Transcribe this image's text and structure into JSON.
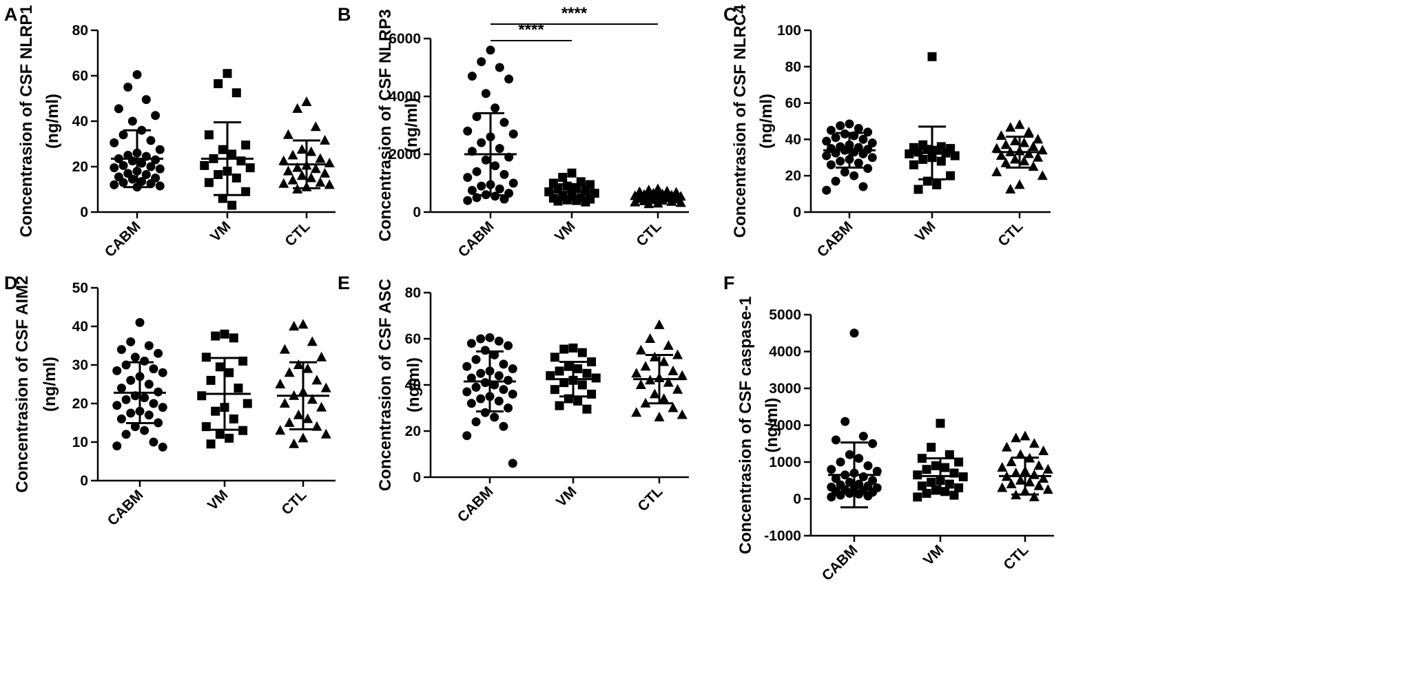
{
  "chart_data": [
    {
      "type": "scatter",
      "panel": "A",
      "ylabel": [
        "Concentrasion of CSF NLRP1",
        "(ng/ml)"
      ],
      "categories": [
        "CABM",
        "VM",
        "CTL"
      ],
      "ylim": [
        0,
        80
      ],
      "yticks": [
        0,
        20,
        40,
        60,
        80
      ],
      "series": [
        {
          "name": "CABM",
          "marker": "circle",
          "mean": 23.5,
          "sd": 12.5,
          "values": [
            60.5,
            55,
            49.5,
            45.5,
            42.5,
            40,
            36,
            34,
            31.5,
            30.5,
            27.5,
            26,
            25,
            24.5,
            23.5,
            23,
            22.5,
            21.5,
            20.5,
            20,
            19.5,
            19,
            18,
            17,
            16.5,
            15.5,
            15,
            14.5,
            13.5,
            13,
            12.5,
            12,
            11.5,
            11
          ]
        },
        {
          "name": "VM",
          "marker": "square",
          "mean": 23.5,
          "sd": 16,
          "values": [
            61,
            56.5,
            52.5,
            34,
            29.5,
            27.5,
            25.5,
            23.5,
            22.5,
            20.5,
            19.5,
            18,
            16.5,
            15,
            13,
            9,
            6,
            3
          ]
        },
        {
          "name": "CTL",
          "marker": "triangle",
          "mean": 21,
          "sd": 10.5,
          "values": [
            48.5,
            45.5,
            37.5,
            34,
            31.5,
            27.5,
            26.5,
            25,
            23.5,
            22.5,
            21.5,
            20.5,
            19.5,
            19,
            18,
            17,
            16,
            15,
            14,
            13,
            12.5,
            12,
            11,
            10
          ]
        }
      ]
    },
    {
      "type": "scatter",
      "panel": "B",
      "ylabel": [
        "Concentrasion of CSF NLRP3",
        "(ng/ml)"
      ],
      "categories": [
        "CABM",
        "VM",
        "CTL"
      ],
      "ylim": [
        0,
        6000
      ],
      "yticks": [
        0,
        2000,
        4000,
        6000
      ],
      "significance": [
        {
          "from": "CABM",
          "to": "VM",
          "label": "****"
        },
        {
          "from": "CABM",
          "to": "CTL",
          "label": "****"
        }
      ],
      "series": [
        {
          "name": "CABM",
          "marker": "circle",
          "mean": 2000,
          "sd": 1420,
          "values": [
            5600,
            5200,
            5000,
            4700,
            4600,
            4100,
            3600,
            3300,
            3100,
            2800,
            2700,
            2600,
            2400,
            2200,
            2100,
            1900,
            1800,
            1600,
            1400,
            1300,
            1200,
            1000,
            950,
            900,
            800,
            750,
            650,
            600,
            550,
            500,
            450,
            400
          ]
        },
        {
          "name": "VM",
          "marker": "square",
          "mean": 700,
          "sd": 260,
          "values": [
            1350,
            1200,
            1050,
            1000,
            950,
            900,
            850,
            800,
            750,
            700,
            650,
            600,
            550,
            500,
            480,
            450,
            420,
            400,
            380,
            350
          ]
        },
        {
          "name": "CTL",
          "marker": "triangle",
          "mean": 500,
          "sd": 130,
          "values": [
            800,
            760,
            720,
            700,
            680,
            650,
            620,
            600,
            580,
            560,
            540,
            520,
            500,
            480,
            460,
            440,
            420,
            400,
            380,
            360,
            340,
            320,
            300,
            280
          ]
        }
      ]
    },
    {
      "type": "scatter",
      "panel": "C",
      "ylabel": [
        "Concentrasion of CSF NLRC4",
        "(ng/ml)"
      ],
      "categories": [
        "CABM",
        "VM",
        "CTL"
      ],
      "ylim": [
        0,
        100
      ],
      "yticks": [
        0,
        20,
        40,
        60,
        80,
        100
      ],
      "series": [
        {
          "name": "CABM",
          "marker": "circle",
          "mean": 34,
          "sd": 9.5,
          "values": [
            48.5,
            47.5,
            46,
            45,
            44,
            43,
            42,
            41,
            40,
            39,
            38,
            37,
            36,
            35.5,
            35,
            34.5,
            34,
            33,
            32.5,
            32,
            31,
            30,
            29,
            28,
            27,
            26,
            24,
            22,
            20,
            17,
            14,
            12
          ]
        },
        {
          "name": "VM",
          "marker": "square",
          "mean": 32.5,
          "sd": 14.5,
          "values": [
            85.5,
            37,
            36,
            35.5,
            35,
            34.5,
            34,
            33,
            32.5,
            32,
            31,
            30,
            29,
            28,
            26,
            20,
            17,
            15,
            12.5
          ]
        },
        {
          "name": "CTL",
          "marker": "triangle",
          "mean": 33,
          "sd": 8.5,
          "values": [
            48,
            46.5,
            44,
            42,
            40,
            39,
            38,
            37,
            36,
            35,
            34,
            33.5,
            33,
            32,
            31,
            30,
            29,
            28,
            27,
            25,
            22,
            20,
            15,
            12.5
          ]
        }
      ]
    },
    {
      "type": "scatter",
      "panel": "D",
      "ylabel": [
        "Concentrasion of CSF AIM2",
        "(ng/ml)"
      ],
      "categories": [
        "CABM",
        "VM",
        "CTL"
      ],
      "ylim": [
        0,
        50
      ],
      "yticks": [
        0,
        10,
        20,
        30,
        40,
        50
      ],
      "series": [
        {
          "name": "CABM",
          "marker": "circle",
          "mean": 22.8,
          "sd": 7.9,
          "values": [
            41,
            36,
            35,
            34,
            33,
            32,
            31,
            30,
            29,
            28.5,
            28,
            27,
            26,
            25,
            24,
            23,
            22,
            21.5,
            21,
            20,
            19.5,
            19,
            18,
            17.5,
            17,
            16,
            15,
            14,
            13,
            12,
            10,
            9,
            8.7
          ]
        },
        {
          "name": "VM",
          "marker": "square",
          "mean": 22.5,
          "sd": 9.3,
          "values": [
            38,
            37.5,
            37,
            32,
            31,
            29.5,
            28,
            26,
            24,
            22,
            20,
            19,
            18,
            16,
            14,
            13,
            12,
            11,
            9.5
          ]
        },
        {
          "name": "CTL",
          "marker": "triangle",
          "mean": 22,
          "sd": 8.7,
          "values": [
            40.5,
            40,
            36,
            34,
            32,
            30,
            29,
            28,
            26,
            25,
            24,
            23,
            22,
            21,
            20,
            19,
            17,
            16,
            15,
            14,
            13,
            12,
            11,
            9.5
          ]
        }
      ]
    },
    {
      "type": "scatter",
      "panel": "E",
      "ylabel": [
        "Concentrasion of CSF ASC",
        "(ng/ml)"
      ],
      "categories": [
        "CABM",
        "VM",
        "CTL"
      ],
      "ylim": [
        0,
        80
      ],
      "yticks": [
        0,
        20,
        40,
        60,
        80
      ],
      "series": [
        {
          "name": "CABM",
          "marker": "circle",
          "mean": 41.5,
          "sd": 13,
          "values": [
            60.5,
            60,
            59,
            58,
            57,
            55,
            53,
            51,
            49,
            48,
            47,
            46,
            45,
            44,
            43,
            42,
            41,
            40,
            39,
            38,
            37,
            36,
            35,
            34,
            33,
            32,
            30,
            28,
            26,
            24,
            22,
            18,
            6
          ]
        },
        {
          "name": "VM",
          "marker": "square",
          "mean": 42.5,
          "sd": 7.5,
          "values": [
            56,
            55.5,
            54,
            52,
            50,
            48,
            47,
            46,
            45,
            44,
            43,
            42,
            41,
            40,
            38,
            36,
            34,
            33,
            31,
            29.5
          ]
        },
        {
          "name": "CTL",
          "marker": "triangle",
          "mean": 42.5,
          "sd": 10.5,
          "values": [
            66,
            60,
            57,
            55,
            53,
            52,
            50,
            48,
            46,
            45,
            44,
            43,
            42,
            41,
            40,
            38,
            36,
            34,
            32,
            30,
            28,
            27,
            26
          ]
        }
      ]
    },
    {
      "type": "scatter",
      "panel": "F",
      "ylabel": [
        "Concentrasion of CSF caspase-1",
        "(ng/ml)"
      ],
      "categories": [
        "CABM",
        "VM",
        "CTL"
      ],
      "ylim": [
        -1000,
        5000
      ],
      "yticks": [
        -1000,
        0,
        1000,
        2000,
        3000,
        4000,
        5000
      ],
      "series": [
        {
          "name": "CABM",
          "marker": "circle",
          "mean": 650,
          "sd": 880,
          "values": [
            4500,
            2100,
            1700,
            1600,
            1500,
            1200,
            1100,
            1000,
            900,
            800,
            750,
            700,
            650,
            600,
            550,
            500,
            450,
            400,
            380,
            350,
            320,
            300,
            280,
            250,
            230,
            200,
            180,
            150,
            130,
            100,
            80,
            50
          ]
        },
        {
          "name": "VM",
          "marker": "square",
          "mean": 620,
          "sd": 480,
          "values": [
            2050,
            1400,
            1200,
            1100,
            1000,
            900,
            850,
            800,
            700,
            650,
            600,
            500,
            450,
            400,
            350,
            300,
            250,
            200,
            150,
            100,
            50
          ]
        },
        {
          "name": "CTL",
          "marker": "triangle",
          "mean": 620,
          "sd": 500,
          "values": [
            1700,
            1650,
            1500,
            1400,
            1300,
            1200,
            1100,
            1000,
            900,
            850,
            800,
            750,
            700,
            650,
            600,
            550,
            500,
            450,
            400,
            350,
            300,
            250,
            200,
            100,
            50
          ]
        }
      ]
    }
  ]
}
